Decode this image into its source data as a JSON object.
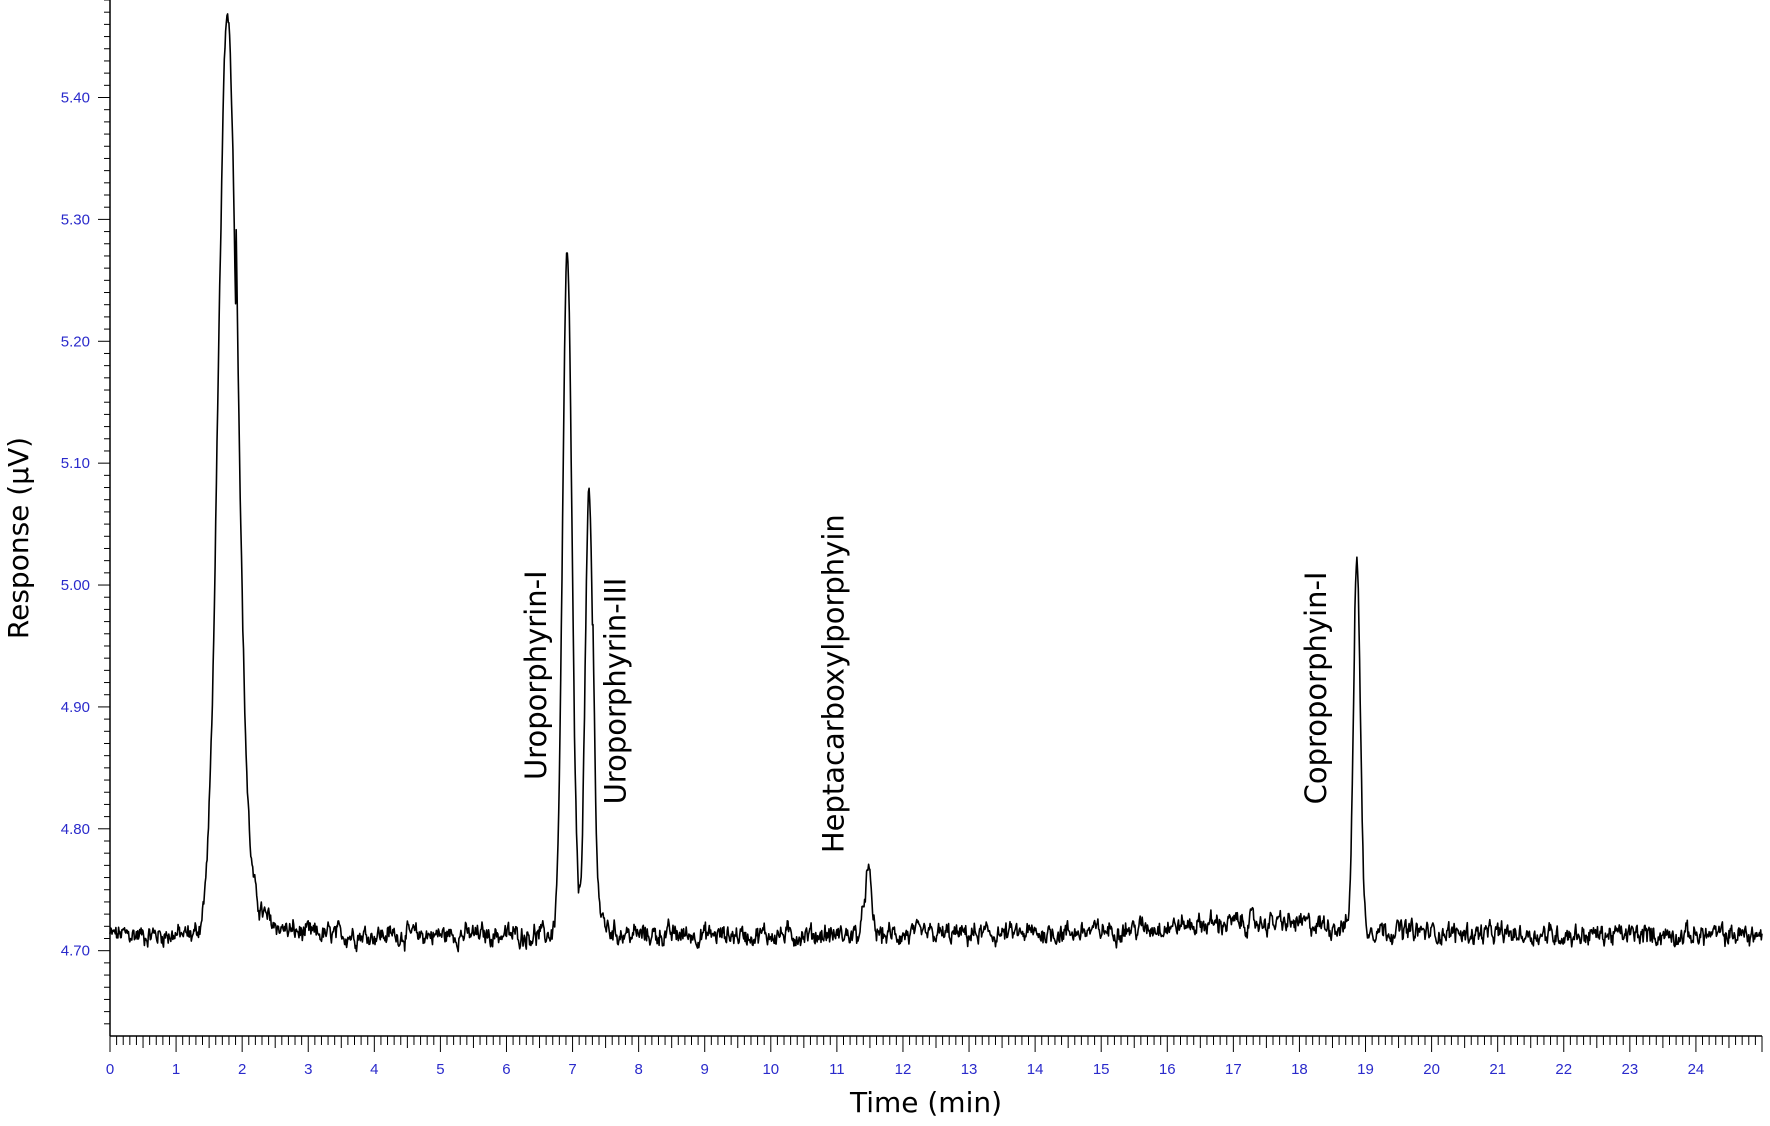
{
  "chart_data": {
    "type": "line",
    "title": "",
    "xlabel": "Time (min)",
    "ylabel": "Response (µV)",
    "xlim": [
      0,
      25
    ],
    "ylim": [
      4.63,
      5.48
    ],
    "x_ticks": [
      0,
      1,
      2,
      3,
      4,
      5,
      6,
      7,
      8,
      9,
      10,
      11,
      12,
      13,
      14,
      15,
      16,
      17,
      18,
      19,
      20,
      21,
      22,
      23,
      24
    ],
    "x_tick_labels": [
      "0",
      "1",
      "2",
      "3",
      "4",
      "5",
      "6",
      "7",
      "8",
      "9",
      "10",
      "11",
      "12",
      "13",
      "14",
      "15",
      "16",
      "17",
      "18",
      "19",
      "20",
      "21",
      "22",
      "23",
      "24"
    ],
    "y_ticks": [
      4.7,
      4.8,
      4.9,
      5.0,
      5.1,
      5.2,
      5.3,
      5.4
    ],
    "y_tick_labels": [
      "4.70",
      "4.80",
      "4.90",
      "5.00",
      "5.10",
      "5.20",
      "5.30",
      "5.40"
    ],
    "grid": false,
    "colors": {
      "trace": "#000000",
      "tick_labels": "#2a2acb"
    },
    "baseline": 4.713,
    "peaks": [
      {
        "rt": 1.78,
        "height": 5.47,
        "width": 0.14
      },
      {
        "rt": 6.92,
        "height": 5.27,
        "width": 0.07
      },
      {
        "rt": 7.25,
        "height": 5.07,
        "width": 0.06
      },
      {
        "rt": 11.47,
        "height": 4.765,
        "width": 0.05
      },
      {
        "rt": 18.87,
        "height": 5.02,
        "width": 0.05
      }
    ],
    "annotations": [
      {
        "text": "Uroporphyrin-I",
        "x": 6.6,
        "y": 4.84
      },
      {
        "text": "Uroporphyrin-III",
        "x": 7.8,
        "y": 4.82
      },
      {
        "text": "Heptacarboxylporphyin",
        "x": 11.1,
        "y": 4.78
      },
      {
        "text": "Coproporphyin-I",
        "x": 18.4,
        "y": 4.82
      }
    ]
  }
}
